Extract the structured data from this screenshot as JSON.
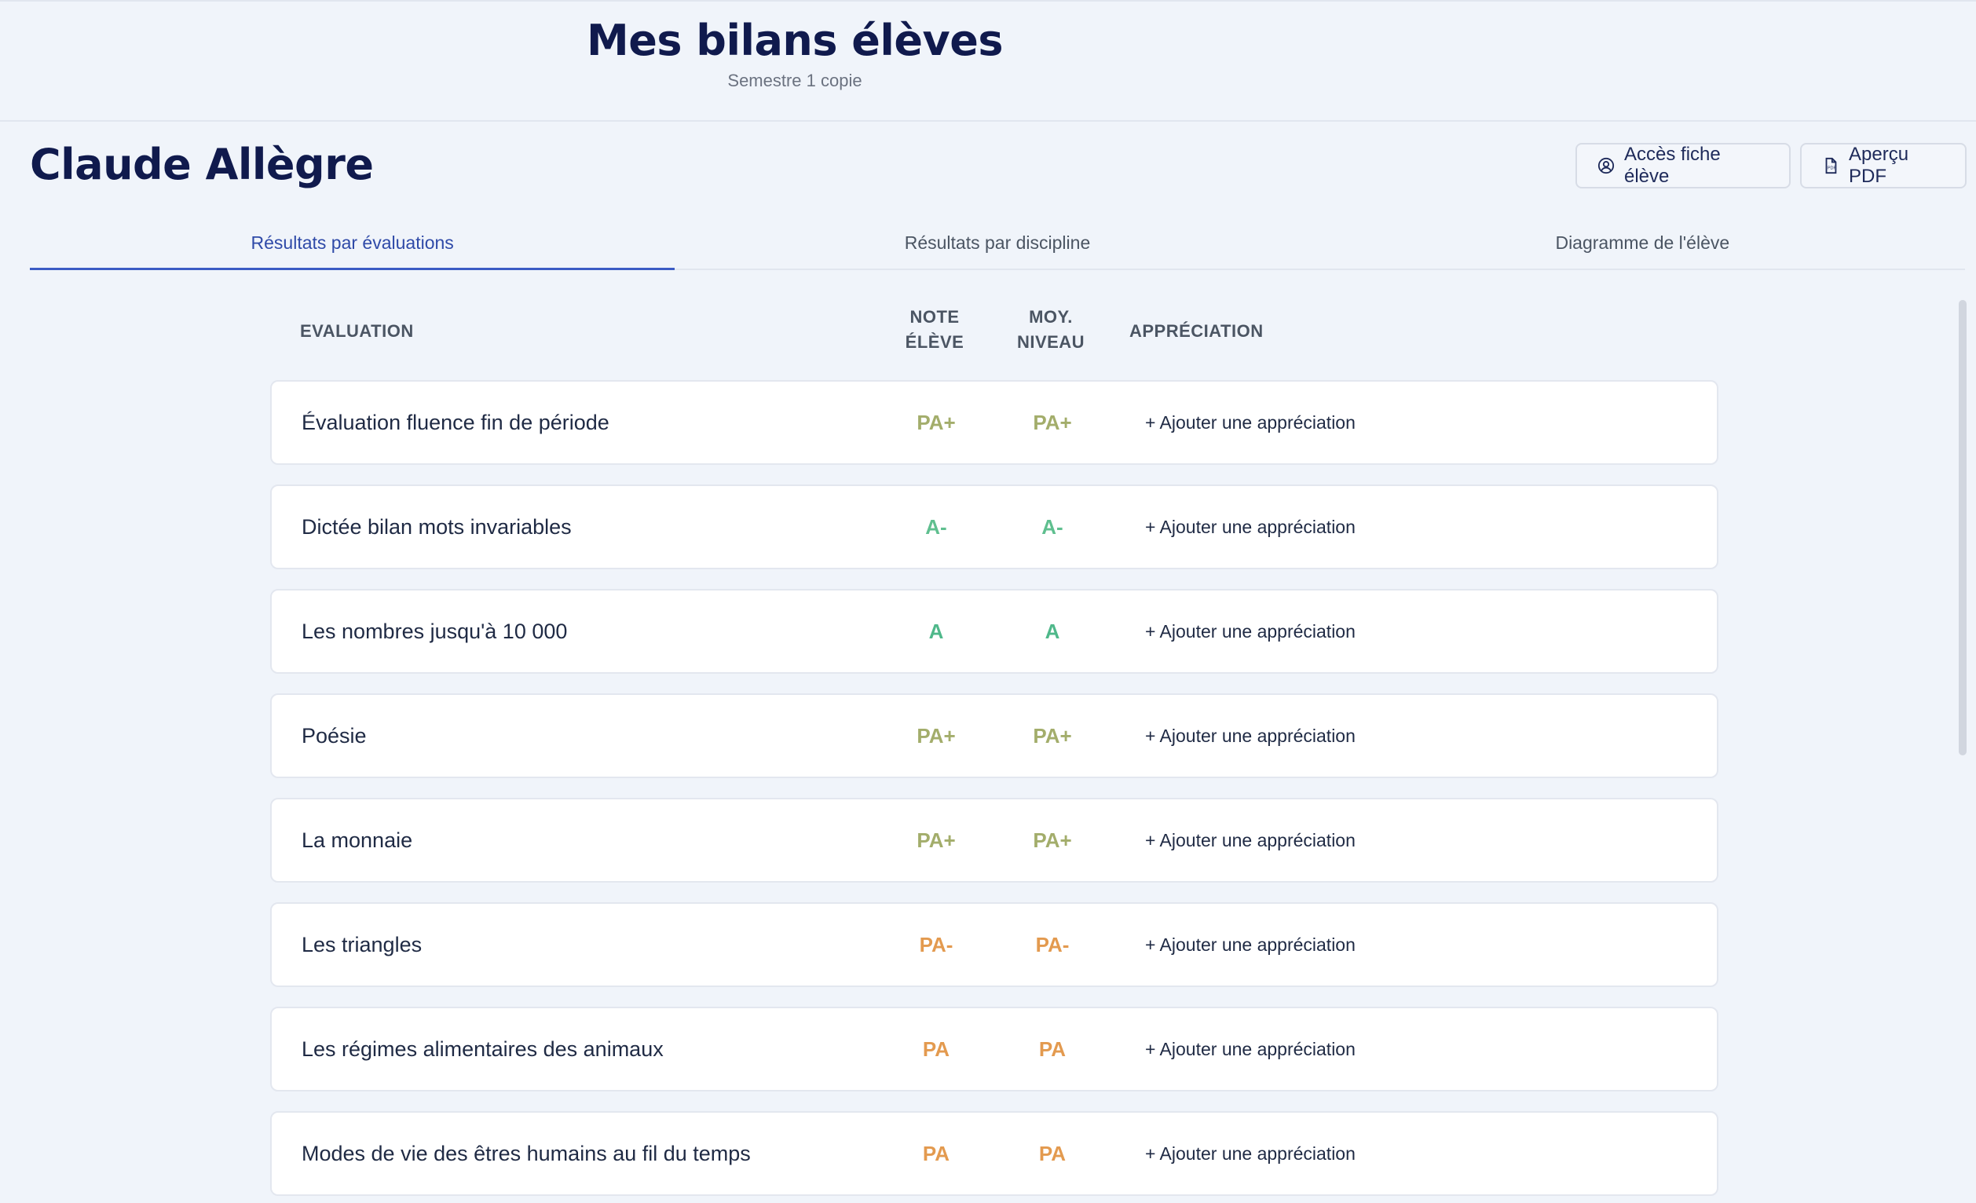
{
  "header": {
    "title": "Mes bilans élèves",
    "subtitle": "Semestre 1 copie"
  },
  "student": {
    "name": "Claude Allègre"
  },
  "actions": {
    "access_label": "Accès fiche élève",
    "pdf_label": "Aperçu PDF"
  },
  "tabs": [
    {
      "label": "Résultats par évaluations",
      "active": true
    },
    {
      "label": "Résultats par discipline",
      "active": false
    },
    {
      "label": "Diagramme de l'élève",
      "active": false
    }
  ],
  "table": {
    "headers": {
      "evaluation": "EVALUATION",
      "note_line1": "NOTE",
      "note_line2": "ÉLÈVE",
      "moy_line1": "MOY.",
      "moy_line2": "NIVEAU",
      "appreciation": "APPRÉCIATION"
    },
    "add_label": "+ Ajouter une appréciation",
    "grade_colors": {
      "PA+": "#a3ad6b",
      "A-": "#5fbf8f",
      "A": "#4fb88a",
      "PA-": "#e39a4f",
      "PA": "#e39a4f"
    },
    "rows": [
      {
        "title": "Évaluation fluence fin de période",
        "note": "PA+",
        "moy": "PA+"
      },
      {
        "title": "Dictée bilan mots invariables",
        "note": "A-",
        "moy": "A-"
      },
      {
        "title": "Les nombres jusqu'à 10 000",
        "note": "A",
        "moy": "A"
      },
      {
        "title": "Poésie",
        "note": "PA+",
        "moy": "PA+"
      },
      {
        "title": "La monnaie",
        "note": "PA+",
        "moy": "PA+"
      },
      {
        "title": "Les triangles",
        "note": "PA-",
        "moy": "PA-"
      },
      {
        "title": "Les régimes alimentaires des animaux",
        "note": "PA",
        "moy": "PA"
      },
      {
        "title": "Modes de vie des êtres humains au fil du temps",
        "note": "PA",
        "moy": "PA"
      }
    ]
  }
}
